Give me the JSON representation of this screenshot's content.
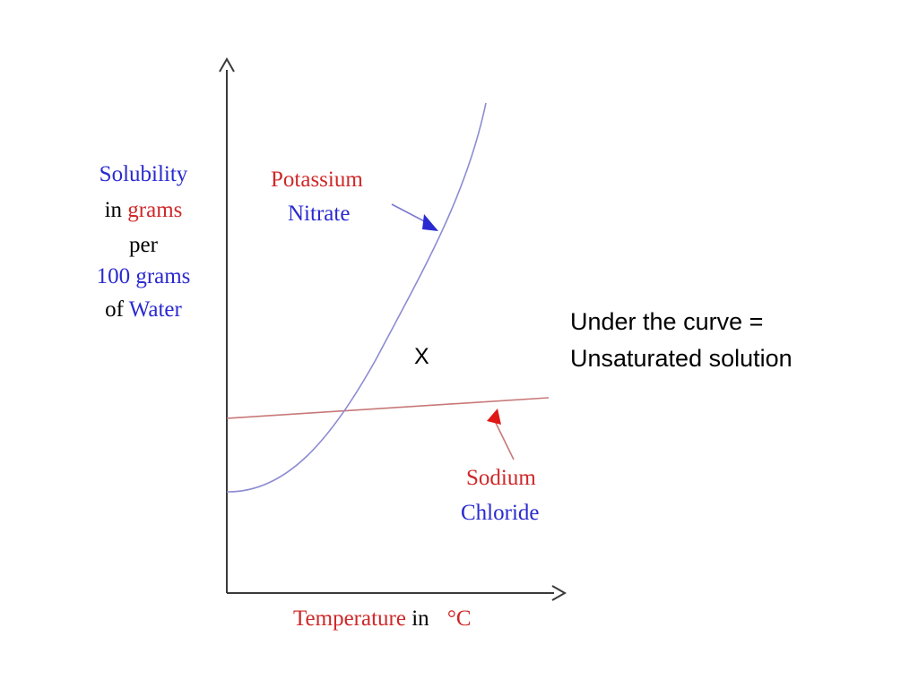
{
  "colors": {
    "axis": "#3a3a3a",
    "blue": "#2a2ad0",
    "red": "#d02828",
    "curve_blue": "#8c8cd2",
    "curve_red": "#c87878",
    "black": "#000000"
  },
  "chart_data": {
    "type": "line",
    "x_ticks": "none",
    "y_ticks": "none",
    "xlabel": {
      "part1": "Temperature",
      "part2": "in",
      "part3": "°C"
    },
    "ylabel": {
      "line1": "Solubility",
      "line2a": "in",
      "line2b": "grams",
      "line3": "per",
      "line4": "100 grams",
      "line5a": "of",
      "line5b": "Water"
    },
    "series": [
      {
        "name": "Potassium Nitrate",
        "label_line1": "Potassium",
        "label_line2": "Nitrate",
        "shape": "exponential rising curve"
      },
      {
        "name": "Sodium Chloride",
        "label_line1": "Sodium",
        "label_line2": "Chloride",
        "shape": "nearly flat line, slight upward slope"
      }
    ],
    "annotations": {
      "point_marker": "X",
      "note_line1": "Under the curve =",
      "note_line2": "Unsaturated solution"
    },
    "grid": false,
    "legend": "none (labels with arrows)"
  }
}
